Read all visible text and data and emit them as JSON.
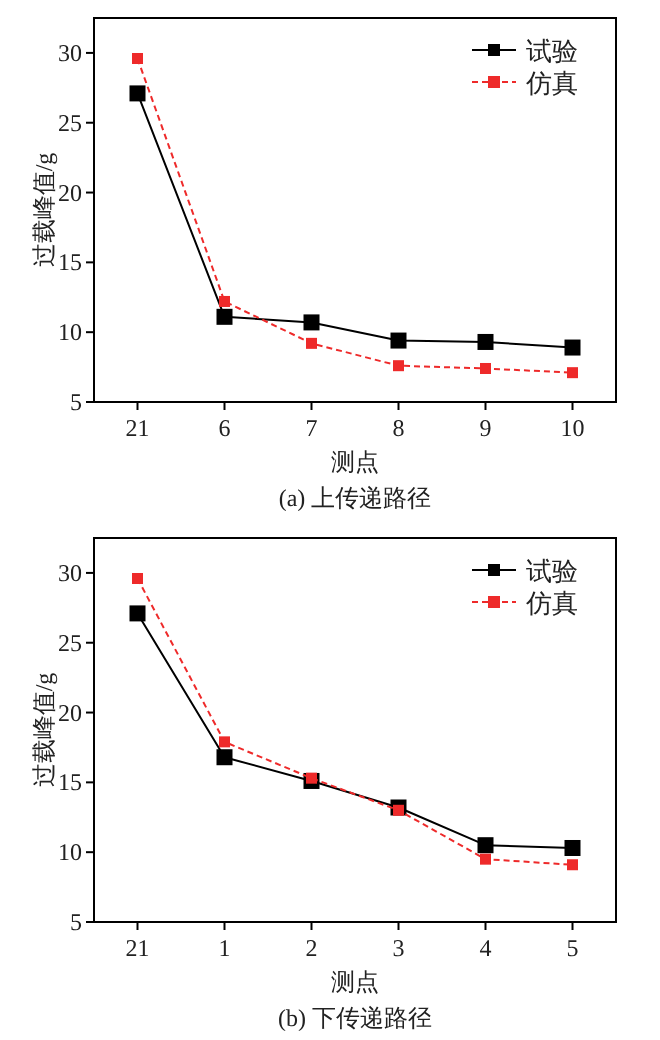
{
  "chart_data": [
    {
      "type": "line",
      "title": "(a) 上传递路径",
      "xlabel": "测点",
      "ylabel": "过载峰值/g",
      "categories": [
        "21",
        "6",
        "7",
        "8",
        "9",
        "10"
      ],
      "ylim": [
        5,
        32.5
      ],
      "yticks": [
        5,
        10,
        15,
        20,
        25,
        30
      ],
      "legend": "top right",
      "marker": "square",
      "grid": false,
      "series": [
        {
          "name": "试验",
          "color": "#000000",
          "line_style": "solid",
          "values": [
            27.1,
            11.1,
            10.7,
            9.4,
            9.3,
            8.9
          ]
        },
        {
          "name": "仿真",
          "color": "#ee2a2a",
          "line_style": "dashed",
          "values": [
            29.6,
            12.2,
            9.2,
            7.6,
            7.4,
            7.1
          ]
        }
      ]
    },
    {
      "type": "line",
      "title": "(b) 下传递路径",
      "xlabel": "测点",
      "ylabel": "过载峰值/g",
      "categories": [
        "21",
        "1",
        "2",
        "3",
        "4",
        "5"
      ],
      "ylim": [
        5,
        32.5
      ],
      "yticks": [
        5,
        10,
        15,
        20,
        25,
        30
      ],
      "legend": "top right",
      "marker": "square",
      "grid": false,
      "series": [
        {
          "name": "试验",
          "color": "#000000",
          "line_style": "solid",
          "values": [
            27.1,
            16.8,
            15.1,
            13.2,
            10.5,
            10.3
          ]
        },
        {
          "name": "仿真",
          "color": "#ee2a2a",
          "line_style": "dashed",
          "values": [
            29.6,
            17.9,
            15.3,
            13.0,
            9.5,
            9.1
          ]
        }
      ]
    }
  ]
}
